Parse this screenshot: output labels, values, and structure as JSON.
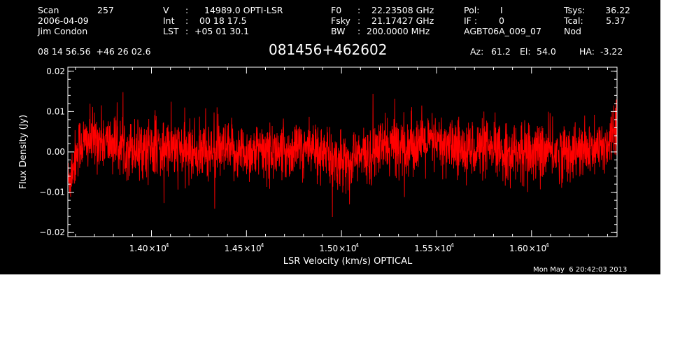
{
  "header": {
    "scan_label": "Scan",
    "scan_value": "257",
    "date": "2006-04-09",
    "observer": "Jim Condon",
    "v_label": "V",
    "v_value": "14989.0 OPTI-LSR",
    "int_label": "Int",
    "int_value": "00 18 17.5",
    "lst_label": "LST",
    "lst_value": "+05 01 30.1",
    "f0_label": "F0",
    "f0_value": "22.23508 GHz",
    "fsky_label": "Fsky",
    "fsky_value": "21.17427 GHz",
    "bw_label": "BW",
    "bw_value": "200.0000 MHz",
    "pol_label": "Pol:",
    "pol_value": "I",
    "if_label": "IF :",
    "if_value": "0",
    "project": "AGBT06A_009_07",
    "tsys_label": "Tsys:",
    "tsys_value": "36.22",
    "tcal_label": "Tcal:",
    "tcal_value": "5.37",
    "mode": "Nod",
    "coords": "08 14 56.56  +46 26 02.6",
    "source_name": "081456+462602",
    "az_label": "Az:",
    "az_value": "61.2",
    "el_label": "El:",
    "el_value": "54.0",
    "ha_label": "HA:",
    "ha_value": "-3.22"
  },
  "timestamp": "Mon May  6 20:42:03 2013",
  "chart_data": {
    "type": "line",
    "title": "081456+462602",
    "xlabel": "LSR Velocity (km/s) OPTICAL",
    "ylabel": "Flux Density (Jy)",
    "xlim": [
      13560,
      16450
    ],
    "ylim": [
      -0.021,
      0.021
    ],
    "x_ticks": [
      {
        "value": 14000,
        "mantissa": "1.40",
        "exponent": "4"
      },
      {
        "value": 14500,
        "mantissa": "1.45",
        "exponent": "4"
      },
      {
        "value": 15000,
        "mantissa": "1.50",
        "exponent": "4"
      },
      {
        "value": 15500,
        "mantissa": "1.55",
        "exponent": "4"
      },
      {
        "value": 16000,
        "mantissa": "1.60",
        "exponent": "4"
      }
    ],
    "y_ticks": [
      {
        "value": 0.02,
        "label": "0.02"
      },
      {
        "value": 0.01,
        "label": "0.01"
      },
      {
        "value": 0.0,
        "label": "0.00"
      },
      {
        "value": -0.01,
        "label": "−0.01"
      },
      {
        "value": -0.02,
        "label": "−0.02"
      }
    ],
    "series": [
      {
        "color": "#ff0000",
        "noise_sigma": 0.0035,
        "x": [
          13560,
          13590,
          13620,
          13700,
          13800,
          13900,
          14000,
          14100,
          14200,
          14300,
          14400,
          14500,
          14600,
          14700,
          14800,
          14900,
          14950,
          15000,
          15050,
          15100,
          15150,
          15200,
          15300,
          15400,
          15500,
          15600,
          15700,
          15800,
          15900,
          16000,
          16100,
          16200,
          16300,
          16380,
          16420,
          16440,
          16450
        ],
        "y": [
          -0.008,
          -0.003,
          0.002,
          0.003,
          0.002,
          0.001,
          0.001,
          0.001,
          0.0,
          0.0,
          0.0,
          0.0,
          0.0,
          0.0,
          0.001,
          0.0,
          -0.002,
          -0.002,
          -0.002,
          -0.001,
          -0.001,
          0.001,
          0.002,
          0.002,
          0.002,
          0.001,
          0.001,
          0.0,
          0.0,
          0.0,
          0.0,
          0.0,
          0.0,
          0.001,
          0.004,
          0.008,
          0.009
        ]
      }
    ]
  }
}
